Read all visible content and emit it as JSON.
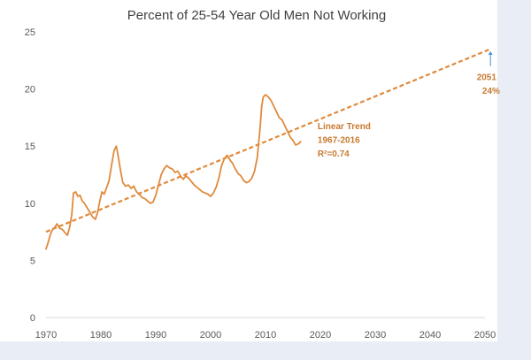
{
  "chart_data": {
    "type": "line",
    "title": "Percent of 25-54 Year Old Men Not Working",
    "xlabel": "",
    "ylabel": "",
    "xlim": [
      1970,
      2050
    ],
    "ylim": [
      0,
      25
    ],
    "x_ticks": [
      "1970",
      "1980",
      "1990",
      "2000",
      "2010",
      "2020",
      "2030",
      "2040",
      "2050"
    ],
    "y_ticks": [
      "0",
      "5",
      "10",
      "15",
      "20",
      "25"
    ],
    "grid": false,
    "legend": "none",
    "colors": {
      "series": "#e08a3c",
      "annotation": "#c87a30",
      "arrow": "#4a90d9"
    },
    "series": [
      {
        "style": "solid",
        "points": [
          [
            1970.0,
            6.0
          ],
          [
            1970.4,
            6.6
          ],
          [
            1970.8,
            7.3
          ],
          [
            1971.2,
            7.7
          ],
          [
            1971.6,
            7.9
          ],
          [
            1972.0,
            8.2
          ],
          [
            1972.5,
            7.8
          ],
          [
            1973.0,
            7.7
          ],
          [
            1973.5,
            7.4
          ],
          [
            1973.9,
            7.2
          ],
          [
            1974.3,
            7.9
          ],
          [
            1974.7,
            9.0
          ],
          [
            1975.0,
            10.9
          ],
          [
            1975.4,
            11.0
          ],
          [
            1975.8,
            10.6
          ],
          [
            1976.2,
            10.7
          ],
          [
            1976.6,
            10.2
          ],
          [
            1977.0,
            10.0
          ],
          [
            1977.5,
            9.6
          ],
          [
            1978.0,
            9.2
          ],
          [
            1978.5,
            8.8
          ],
          [
            1979.0,
            8.6
          ],
          [
            1979.4,
            9.2
          ],
          [
            1979.8,
            10.2
          ],
          [
            1980.2,
            11.0
          ],
          [
            1980.6,
            10.8
          ],
          [
            1981.0,
            11.3
          ],
          [
            1981.5,
            12.0
          ],
          [
            1982.0,
            13.5
          ],
          [
            1982.4,
            14.6
          ],
          [
            1982.8,
            15.0
          ],
          [
            1983.2,
            14.0
          ],
          [
            1983.6,
            12.8
          ],
          [
            1984.0,
            11.8
          ],
          [
            1984.5,
            11.5
          ],
          [
            1985.0,
            11.6
          ],
          [
            1985.5,
            11.3
          ],
          [
            1986.0,
            11.5
          ],
          [
            1986.5,
            11.0
          ],
          [
            1987.0,
            10.8
          ],
          [
            1987.5,
            10.5
          ],
          [
            1988.0,
            10.4
          ],
          [
            1988.5,
            10.2
          ],
          [
            1989.0,
            10.0
          ],
          [
            1989.5,
            10.1
          ],
          [
            1990.0,
            10.7
          ],
          [
            1990.5,
            11.6
          ],
          [
            1991.0,
            12.5
          ],
          [
            1991.5,
            13.0
          ],
          [
            1992.0,
            13.3
          ],
          [
            1992.5,
            13.1
          ],
          [
            1993.0,
            13.0
          ],
          [
            1993.5,
            12.7
          ],
          [
            1994.0,
            12.8
          ],
          [
            1994.5,
            12.4
          ],
          [
            1995.0,
            12.1
          ],
          [
            1995.5,
            12.4
          ],
          [
            1996.0,
            12.2
          ],
          [
            1996.5,
            11.9
          ],
          [
            1997.0,
            11.6
          ],
          [
            1997.5,
            11.4
          ],
          [
            1998.0,
            11.2
          ],
          [
            1998.5,
            11.0
          ],
          [
            1999.0,
            10.9
          ],
          [
            1999.5,
            10.8
          ],
          [
            2000.0,
            10.6
          ],
          [
            2000.5,
            10.9
          ],
          [
            2001.0,
            11.4
          ],
          [
            2001.5,
            12.2
          ],
          [
            2002.0,
            13.3
          ],
          [
            2002.5,
            13.9
          ],
          [
            2003.0,
            14.2
          ],
          [
            2003.5,
            13.8
          ],
          [
            2004.0,
            13.5
          ],
          [
            2004.5,
            13.0
          ],
          [
            2005.0,
            12.6
          ],
          [
            2005.5,
            12.4
          ],
          [
            2006.0,
            12.0
          ],
          [
            2006.5,
            11.8
          ],
          [
            2007.0,
            11.9
          ],
          [
            2007.5,
            12.2
          ],
          [
            2008.0,
            12.8
          ],
          [
            2008.5,
            14.0
          ],
          [
            2009.0,
            16.5
          ],
          [
            2009.3,
            18.5
          ],
          [
            2009.6,
            19.3
          ],
          [
            2010.0,
            19.5
          ],
          [
            2010.5,
            19.3
          ],
          [
            2011.0,
            19.0
          ],
          [
            2011.5,
            18.5
          ],
          [
            2012.0,
            18.0
          ],
          [
            2012.5,
            17.5
          ],
          [
            2013.0,
            17.3
          ],
          [
            2013.5,
            16.8
          ],
          [
            2014.0,
            16.3
          ],
          [
            2014.5,
            15.8
          ],
          [
            2015.0,
            15.5
          ],
          [
            2015.5,
            15.1
          ],
          [
            2016.0,
            15.2
          ],
          [
            2016.4,
            15.4
          ]
        ]
      },
      {
        "style": "dashed",
        "points": [
          [
            1970.0,
            7.5
          ],
          [
            2051.0,
            23.5
          ]
        ]
      }
    ],
    "annotations": [
      {
        "label": "Linear Trend",
        "x": 2019.5,
        "y": 16.5
      },
      {
        "label": "1967-2016",
        "x": 2019.5,
        "y": 15.3
      },
      {
        "label": "R²=0.74",
        "x": 2019.5,
        "y": 14.1
      },
      {
        "label": "2051",
        "x": 2048.5,
        "y": 20.8
      },
      {
        "label": "24%",
        "x": 2049.5,
        "y": 19.6
      }
    ],
    "arrow": {
      "from": [
        2051.0,
        22.0
      ],
      "to": [
        2051.0,
        23.3
      ]
    }
  }
}
